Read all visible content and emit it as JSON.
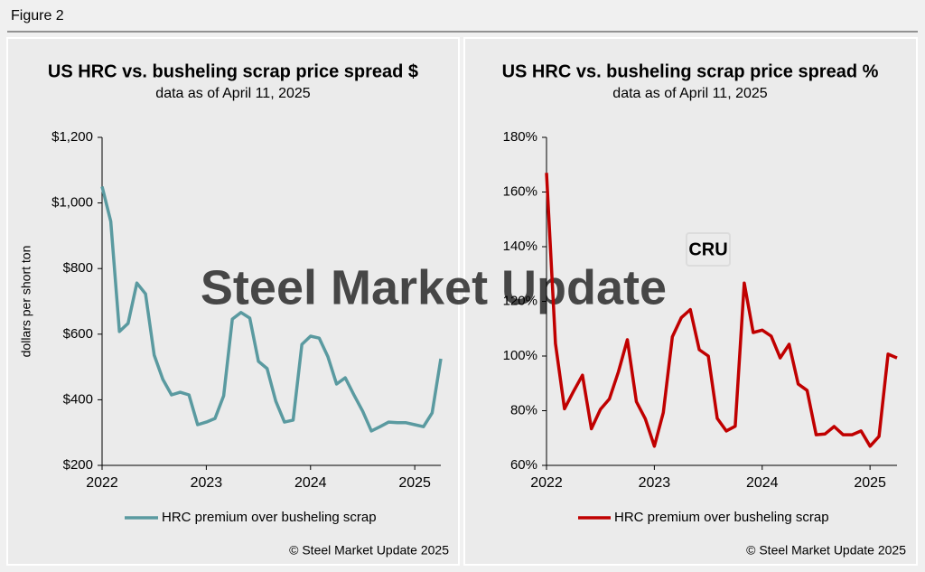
{
  "figure_label": "Figure 2",
  "watermark": "Steel Market Update",
  "watermark_logo": "CRU",
  "chart_data": [
    {
      "type": "line",
      "title": "US HRC vs. busheling scrap price spread $",
      "subtitle": "data as of April 11, 2025",
      "y_label": "dollars per short ton",
      "x": [
        2022,
        2022.0833,
        2022.1667,
        2022.25,
        2022.3333,
        2022.4167,
        2022.5,
        2022.5833,
        2022.6667,
        2022.75,
        2022.8333,
        2022.9167,
        2023,
        2023.0833,
        2023.1667,
        2023.25,
        2023.3333,
        2023.4167,
        2023.5,
        2023.5833,
        2023.6667,
        2023.75,
        2023.8333,
        2023.9167,
        2024,
        2024.0833,
        2024.1667,
        2024.25,
        2024.3333,
        2024.4167,
        2024.5,
        2024.5833,
        2024.6667,
        2024.75,
        2024.8333,
        2024.9167,
        2025,
        2025.0833,
        2025.1667,
        2025.25
      ],
      "series": [
        {
          "name": "HRC premium over busheling scrap",
          "color": "#5a9aa0",
          "values": [
            1050,
            944,
            608,
            633,
            756,
            723,
            536,
            462,
            415,
            423,
            415,
            324,
            332,
            343,
            412,
            646,
            666,
            649,
            517,
            495,
            396,
            332,
            338,
            569,
            594,
            588,
            531,
            448,
            467,
            415,
            365,
            305,
            318,
            332,
            330,
            330,
            324,
            318,
            360,
            525
          ]
        }
      ],
      "xlim": [
        2022,
        2025.25
      ],
      "xticks": [
        2022,
        2023,
        2024,
        2025
      ],
      "ylim": [
        200,
        1200
      ],
      "yticks": [
        {
          "value": 200,
          "label": "$200"
        },
        {
          "value": 400,
          "label": "$400"
        },
        {
          "value": 600,
          "label": "$600"
        },
        {
          "value": 800,
          "label": "$800"
        },
        {
          "value": 1000,
          "label": "$1,000"
        },
        {
          "value": 1200,
          "label": "$1,200"
        }
      ],
      "legend": "bottom",
      "source": "© Steel Market Update 2025"
    },
    {
      "type": "line",
      "title": "US HRC vs. busheling scrap price spread %",
      "subtitle": "data as of April 11, 2025",
      "x": [
        2022,
        2022.0833,
        2022.1667,
        2022.25,
        2022.3333,
        2022.4167,
        2022.5,
        2022.5833,
        2022.6667,
        2022.75,
        2022.8333,
        2022.9167,
        2023,
        2023.0833,
        2023.1667,
        2023.25,
        2023.3333,
        2023.4167,
        2023.5,
        2023.5833,
        2023.6667,
        2023.75,
        2023.8333,
        2023.9167,
        2024,
        2024.0833,
        2024.1667,
        2024.25,
        2024.3333,
        2024.4167,
        2024.5,
        2024.5833,
        2024.6667,
        2024.75,
        2024.8333,
        2024.9167,
        2025,
        2025.0833,
        2025.1667,
        2025.25
      ],
      "series": [
        {
          "name": "HRC premium over busheling scrap",
          "color": "#c00000",
          "values": [
            167,
            104.6,
            80.7,
            87,
            93,
            73.4,
            80.5,
            84.3,
            94.2,
            106,
            83.3,
            77,
            67,
            79.3,
            107,
            114,
            117,
            102.3,
            100,
            77.2,
            72.6,
            74.3,
            126.7,
            108.6,
            109.5,
            107.3,
            99.3,
            104.3,
            89.8,
            87.4,
            71.2,
            71.5,
            74.2,
            71.2,
            71.2,
            72.6,
            67,
            70.6,
            100.7,
            99.3
          ]
        }
      ],
      "xlim": [
        2022,
        2025.25
      ],
      "xticks": [
        2022,
        2023,
        2024,
        2025
      ],
      "ylim": [
        60,
        180
      ],
      "yticks": [
        {
          "value": 60,
          "label": "60%"
        },
        {
          "value": 80,
          "label": "80%"
        },
        {
          "value": 100,
          "label": "100%"
        },
        {
          "value": 120,
          "label": "120%"
        },
        {
          "value": 140,
          "label": "140%"
        },
        {
          "value": 160,
          "label": "160%"
        },
        {
          "value": 180,
          "label": "180%"
        }
      ],
      "legend": "bottom",
      "source": "© Steel Market Update 2025"
    }
  ]
}
